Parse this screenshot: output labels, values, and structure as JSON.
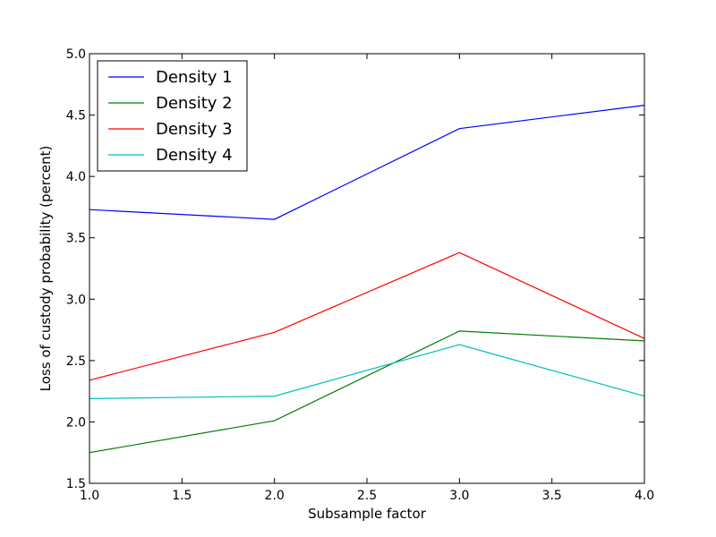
{
  "chart_data": {
    "type": "line",
    "xlabel": "Subsample factor",
    "ylabel": "Loss of custody probability (percent)",
    "xlim": [
      1.0,
      4.0
    ],
    "ylim": [
      1.5,
      5.0
    ],
    "xticks": [
      "1.0",
      "1.5",
      "2.0",
      "2.5",
      "3.0",
      "3.5",
      "4.0"
    ],
    "yticks": [
      "1.5",
      "2.0",
      "2.5",
      "3.0",
      "3.5",
      "4.0",
      "4.5",
      "5.0"
    ],
    "grid": false,
    "legend_position": "top-left",
    "x": [
      1.0,
      2.0,
      3.0,
      4.0
    ],
    "series": [
      {
        "name": "Density 1",
        "color": "#0000ff",
        "values": [
          3.73,
          3.65,
          4.39,
          4.58
        ]
      },
      {
        "name": "Density 2",
        "color": "#007f00",
        "values": [
          1.75,
          2.01,
          2.74,
          2.66
        ]
      },
      {
        "name": "Density 3",
        "color": "#ff0000",
        "values": [
          2.34,
          2.73,
          3.38,
          2.68
        ]
      },
      {
        "name": "Density 4",
        "color": "#00bfbf",
        "values": [
          2.19,
          2.21,
          2.63,
          2.21
        ]
      }
    ]
  }
}
